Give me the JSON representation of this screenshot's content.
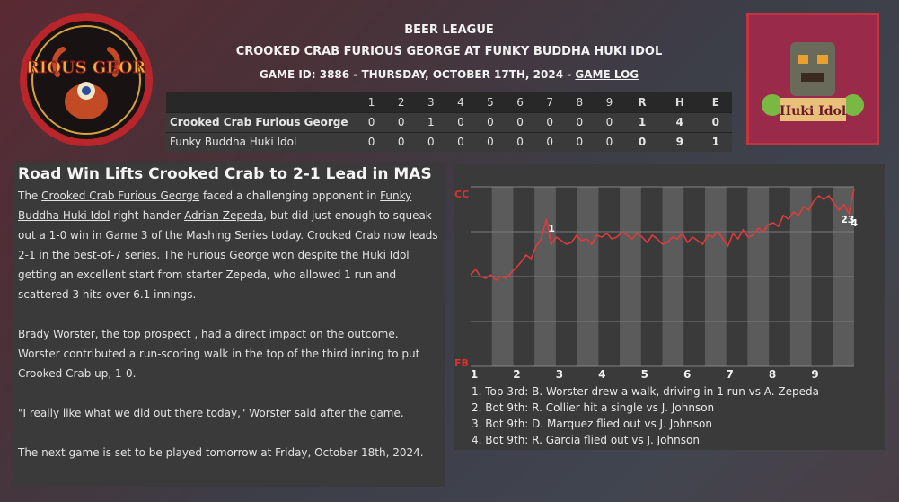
{
  "header": {
    "league": "BEER LEAGUE",
    "matchup": "CROOKED CRAB FURIOUS GEORGE AT FUNKY BUDDHA HUKI IDOL",
    "game_info": "GAME ID: 3886 - THURSDAY, OCTOBER 17TH, 2024 - ",
    "game_log_link": "GAME LOG"
  },
  "logos": {
    "left_text": "FURIOUS GEORGE",
    "right_text": "Huki Idol"
  },
  "boxscore": {
    "innings": [
      "1",
      "2",
      "3",
      "4",
      "5",
      "6",
      "7",
      "8",
      "9"
    ],
    "totals": [
      "R",
      "H",
      "E"
    ],
    "rows": [
      {
        "team": "Crooked Crab Furious George",
        "innings": [
          "0",
          "0",
          "1",
          "0",
          "0",
          "0",
          "0",
          "0",
          "0"
        ],
        "totals": [
          "1",
          "4",
          "0"
        ]
      },
      {
        "team": "Funky Buddha Huki Idol",
        "innings": [
          "0",
          "0",
          "0",
          "0",
          "0",
          "0",
          "0",
          "0",
          "0"
        ],
        "totals": [
          "0",
          "9",
          "1"
        ]
      }
    ]
  },
  "article": {
    "headline": "Road Win Lifts Crooked Crab to 2-1 Lead in MAS",
    "p1": {
      "a": "The ",
      "link1": "Crooked Crab Furious George",
      "b": " faced a challenging opponent in ",
      "link2": "Funky Buddha Huki Idol",
      "c": " right-hander ",
      "link3": "Adrian Zepeda",
      "d": ", but did just enough to squeak out a 1-0 win in Game 3 of the Mashing Series today. Crooked Crab now leads 2-1 in the best-of-7 series. The Furious George won despite the Huki Idol getting an excellent start from starter Zepeda, who allowed 1 run and scattered 3 hits over 6.1 innings."
    },
    "p2": {
      "link": "Brady Worster",
      "text": ", the top prospect , had a direct impact on the outcome. Worster contributed a run-scoring walk in the top of the third inning to put Crooked Crab up, 1-0."
    },
    "p3": "\"I really like what we did out there today,\" Worster said after the game.",
    "p4": "The next game is set to be played tomorrow at Friday, October 18th, 2024."
  },
  "chart_data": {
    "type": "line",
    "y_top_label": "CC",
    "y_bottom_label": "FB",
    "ylim": [
      0,
      100
    ],
    "x_labels": [
      "1",
      "2",
      "3",
      "4",
      "5",
      "6",
      "7",
      "8",
      "9"
    ],
    "series": [
      {
        "values": [
          51,
          54,
          50,
          49,
          51,
          48,
          50,
          49,
          52,
          55,
          58,
          62,
          60,
          67,
          71,
          82,
          68,
          72,
          70,
          68,
          69,
          73,
          70,
          71,
          68,
          73,
          72,
          74,
          71,
          72,
          75,
          73,
          71,
          74,
          72,
          69,
          73,
          71,
          68,
          69,
          72,
          71,
          74,
          69,
          72,
          70,
          68,
          73,
          72,
          75,
          71,
          67,
          74,
          71,
          76,
          72,
          73,
          77,
          75,
          79,
          80,
          78,
          84,
          82,
          86,
          84,
          89,
          87,
          92,
          95,
          93,
          95,
          91,
          87,
          90,
          85,
          99
        ]
      }
    ],
    "annotations": [
      {
        "label": "1",
        "index": 15
      },
      {
        "label": "23",
        "index": 73
      },
      {
        "label": "4",
        "index": 75
      }
    ],
    "events": [
      "1. Top 3rd: B. Worster drew a walk, driving in 1 run vs A. Zepeda",
      "2. Bot 9th: R. Collier hit a single vs J. Johnson",
      "3. Bot 9th: D. Marquez flied out vs J. Johnson",
      "4. Bot 9th: R. Garcia flied out vs J. Johnson"
    ]
  }
}
